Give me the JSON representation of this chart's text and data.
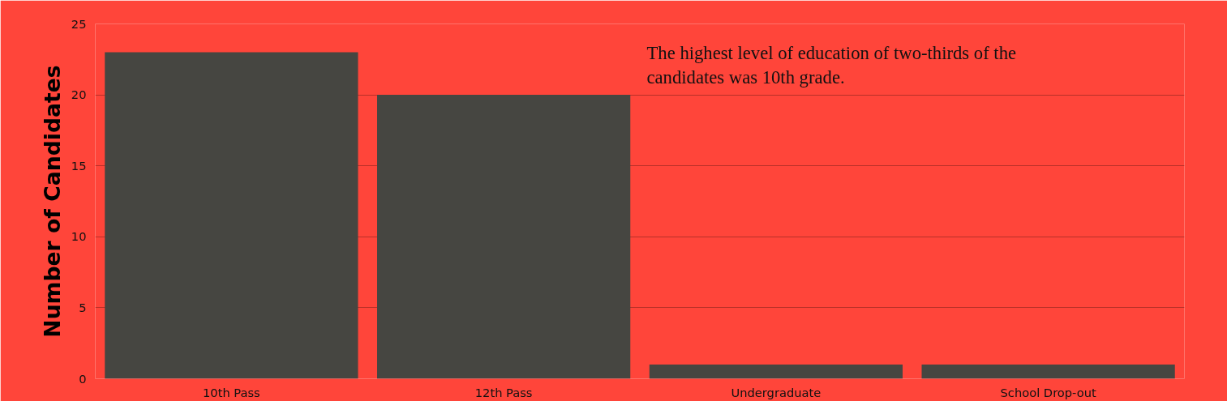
{
  "chart_data": {
    "type": "bar",
    "ylabel": "Number of Candidates",
    "categories": [
      "10th Pass",
      "12th Pass",
      "Undergraduate",
      "School Drop-out"
    ],
    "values": [
      23,
      20,
      1,
      1
    ],
    "color": "#464641",
    "ylim": [
      0,
      25
    ],
    "yticks": [
      0,
      5,
      10,
      15,
      20,
      25
    ],
    "grid": "y",
    "annotations": [
      "The highest level of education of two-thirds of the candidates was 10th grade."
    ]
  }
}
